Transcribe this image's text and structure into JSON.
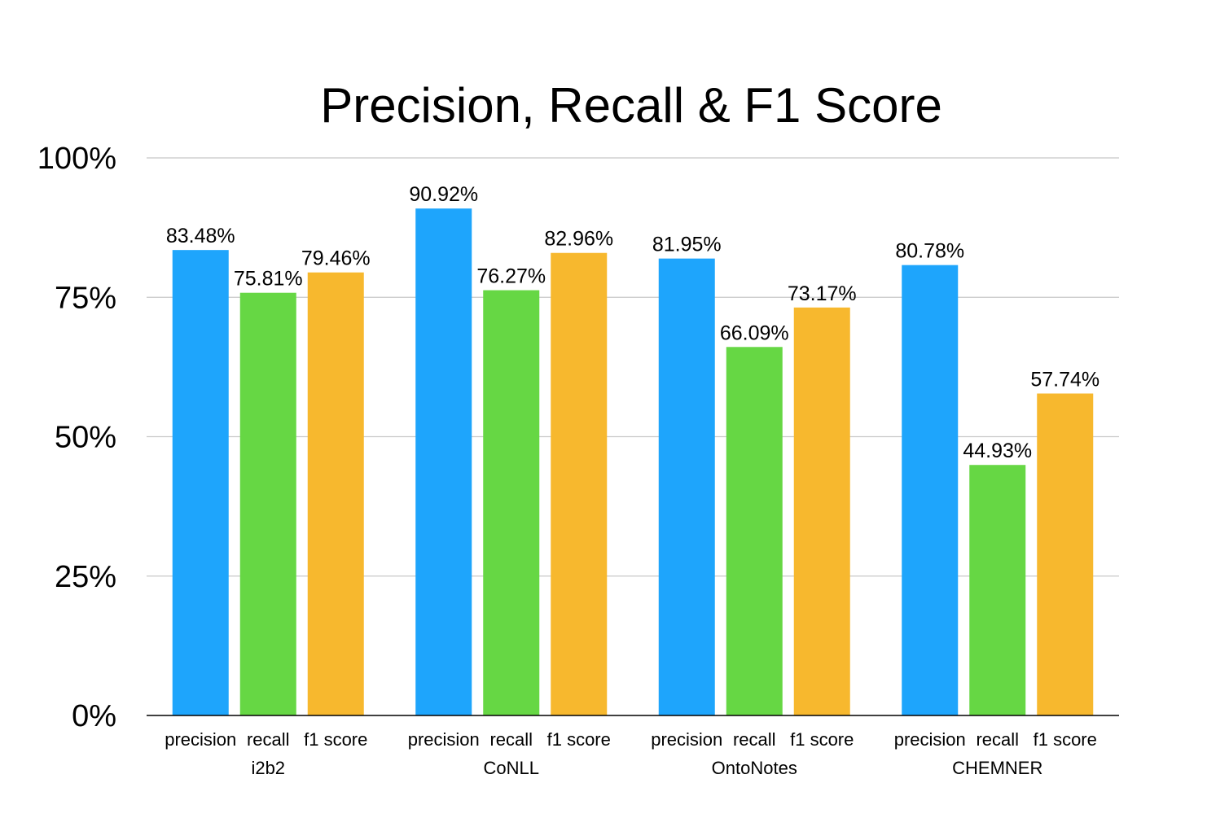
{
  "chart_data": {
    "type": "bar",
    "title": "Precision, Recall & F1 Score",
    "xlabel": "",
    "ylabel": "",
    "ylim": [
      0,
      100
    ],
    "yticks": [
      "0%",
      "25%",
      "50%",
      "75%",
      "100%"
    ],
    "ytick_values": [
      0,
      25,
      50,
      75,
      100
    ],
    "grid": true,
    "legend": "none",
    "categories": [
      "i2b2",
      "CoNLL",
      "OntoNotes",
      "CHEMNER"
    ],
    "sub_categories": [
      "precision",
      "recall",
      "f1 score"
    ],
    "series": [
      {
        "key": "precision",
        "color": "#1ea5fc",
        "values": [
          83.48,
          90.92,
          81.95,
          80.78
        ],
        "labels": [
          "83.48%",
          "90.92%",
          "81.95%",
          "80.78%"
        ]
      },
      {
        "key": "recall",
        "color": "#66d744",
        "values": [
          75.81,
          76.27,
          66.09,
          44.93
        ],
        "labels": [
          "75.81%",
          "76.27%",
          "66.09%",
          "44.93%"
        ]
      },
      {
        "key": "f1 score",
        "color": "#f7b82e",
        "values": [
          79.46,
          82.96,
          73.17,
          57.74
        ],
        "labels": [
          "79.46%",
          "82.96%",
          "73.17%",
          "57.74%"
        ]
      }
    ]
  }
}
